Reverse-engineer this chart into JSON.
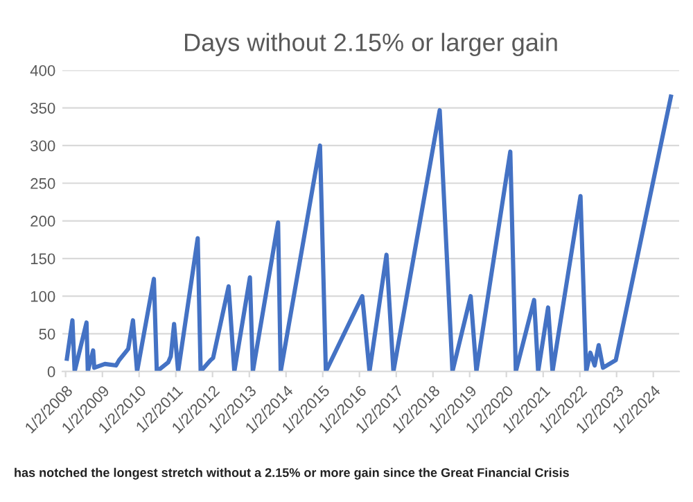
{
  "chart_data": {
    "type": "line",
    "title": "Days without 2.15% or larger gain",
    "x": [
      "2008-01-15",
      "2008-03-10",
      "2008-04-01",
      "2008-07-28",
      "2008-08-10",
      "2008-10-02",
      "2008-10-13",
      "2009-01-27",
      "2009-05-18",
      "2009-06-17",
      "2009-09-16",
      "2009-11-02",
      "2009-12-13",
      "2010-05-29",
      "2010-06-27",
      "2010-10-18",
      "2010-11-13",
      "2010-12-16",
      "2011-01-25",
      "2011-08-08",
      "2011-09-06",
      "2011-12-13",
      "2012-01-08",
      "2012-06-10",
      "2012-08-06",
      "2013-01-08",
      "2013-02-06",
      "2013-10-15",
      "2013-11-10",
      "2014-12-06",
      "2015-02-02",
      "2016-01-30",
      "2016-04-11",
      "2016-09-27",
      "2016-12-05",
      "2018-03-10",
      "2018-07-15",
      "2019-01-12",
      "2019-03-10",
      "2020-02-10",
      "2020-04-05",
      "2020-10-04",
      "2020-11-13",
      "2021-02-20",
      "2021-04-05",
      "2022-01-08",
      "2022-03-06",
      "2022-04-16",
      "2022-05-29",
      "2022-07-08",
      "2022-08-20",
      "2022-12-25",
      "2024-06-25"
    ],
    "series": [
      {
        "color": "#4472c4",
        "values": [
          17,
          68,
          0,
          65,
          0,
          28,
          5,
          10,
          8,
          15,
          30,
          68,
          0,
          123,
          0,
          12,
          20,
          63,
          0,
          177,
          0,
          15,
          18,
          113,
          0,
          125,
          0,
          198,
          0,
          300,
          0,
          100,
          0,
          155,
          0,
          347,
          0,
          100,
          0,
          292,
          0,
          95,
          0,
          85,
          0,
          233,
          0,
          25,
          8,
          35,
          5,
          15,
          365
        ]
      }
    ],
    "xlim": [
      "2007-12-01",
      "2024-09-15"
    ],
    "xticks": [
      {
        "value": "2008-01-02",
        "label": "1/2/2008"
      },
      {
        "value": "2009-01-02",
        "label": "1/2/2009"
      },
      {
        "value": "2010-01-02",
        "label": "1/2/2010"
      },
      {
        "value": "2011-01-02",
        "label": "1/2/2011"
      },
      {
        "value": "2012-01-02",
        "label": "1/2/2012"
      },
      {
        "value": "2013-01-02",
        "label": "1/2/2013"
      },
      {
        "value": "2014-01-02",
        "label": "1/2/2014"
      },
      {
        "value": "2015-01-02",
        "label": "1/2/2015"
      },
      {
        "value": "2016-01-02",
        "label": "1/2/2016"
      },
      {
        "value": "2017-01-02",
        "label": "1/2/2017"
      },
      {
        "value": "2018-01-02",
        "label": "1/2/2018"
      },
      {
        "value": "2019-01-02",
        "label": "1/2/2019"
      },
      {
        "value": "2020-01-02",
        "label": "1/2/2020"
      },
      {
        "value": "2021-01-02",
        "label": "1/2/2021"
      },
      {
        "value": "2022-01-02",
        "label": "1/2/2022"
      },
      {
        "value": "2023-01-02",
        "label": "1/2/2023"
      },
      {
        "value": "2024-01-02",
        "label": "1/2/2024"
      }
    ],
    "ylim": [
      0,
      400
    ],
    "yticks": [
      0,
      50,
      100,
      150,
      200,
      250,
      300,
      350,
      400
    ],
    "grid": "y",
    "line_style": "solid",
    "marker": "none",
    "annotations": [
      "has notched the longest stretch without a 2.15% or more gain since the Great Financial Crisis"
    ]
  }
}
